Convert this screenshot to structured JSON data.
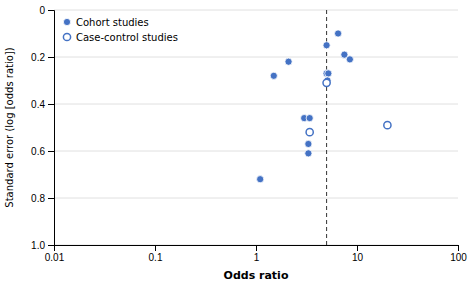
{
  "chart_data": {
    "type": "scatter",
    "xlabel": "Odds ratio",
    "ylabel": "Standard error (log [odds ratio])",
    "log": "x",
    "grid": "y",
    "legend": "upper left",
    "xlim": [
      0.01,
      100
    ],
    "xticks": [
      0.01,
      0.1,
      1,
      10,
      100
    ],
    "ylim": [
      1.0,
      0.0
    ],
    "yticks": [
      0,
      0.2,
      0.4,
      0.6,
      0.8,
      {
        "value": 1.0,
        "label": "1.0"
      }
    ],
    "series": [
      {
        "name": "Cohort studies",
        "color": "#4472c4",
        "marker": "filled",
        "x": [
          1.1,
          1.5,
          2.1,
          3.0,
          3.4,
          3.3,
          3.3,
          5.0,
          5.0,
          5.2,
          5.1,
          6.5,
          7.5,
          8.5
        ],
        "values": [
          0.72,
          0.28,
          0.22,
          0.46,
          0.46,
          0.61,
          0.57,
          0.27,
          0.15,
          0.27,
          0.3,
          0.1,
          0.19,
          0.21
        ]
      },
      {
        "name": "Case-control studies",
        "color": "#4472c4",
        "marker": "open",
        "x": [
          3.4,
          5.0,
          20.0
        ],
        "values": [
          0.52,
          0.31,
          0.49
        ]
      }
    ],
    "annotations": [
      {
        "x": 5.0,
        "line_style": "dashed"
      }
    ]
  }
}
